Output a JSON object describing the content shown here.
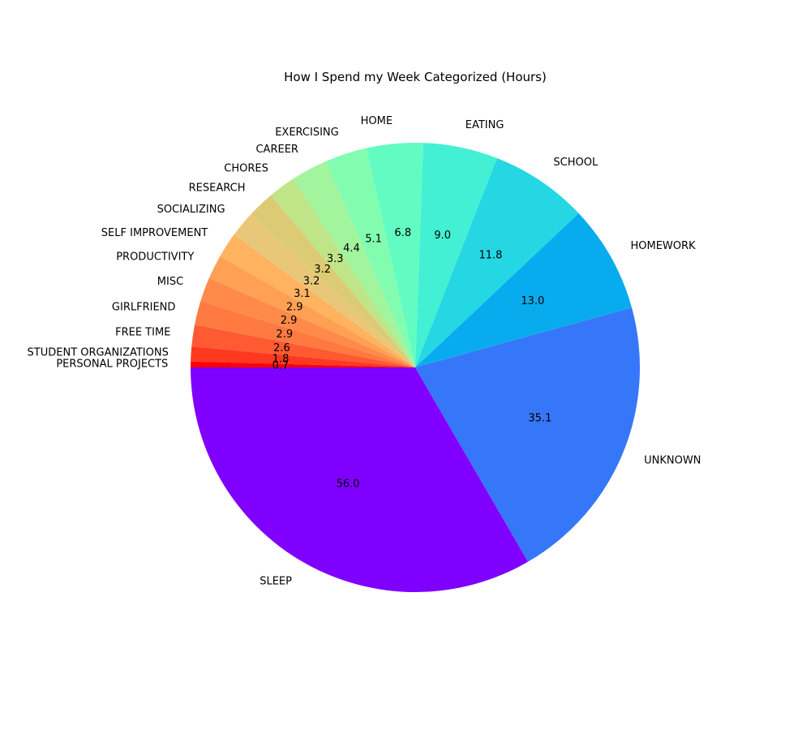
{
  "chart_data": {
    "type": "pie",
    "title": "How I Spend my Week Categorized (Hours)",
    "colormap": "rainbow",
    "value_format": "one-decimal",
    "start_angle_deg": 180,
    "direction": "counterclockwise",
    "slices": [
      {
        "label": "SLEEP",
        "value": 56.0,
        "color": "#8000ff"
      },
      {
        "label": "UNKNOWN",
        "value": 35.1,
        "color": "#3677f9"
      },
      {
        "label": "HOMEWORK",
        "value": 13.0,
        "color": "#08acee"
      },
      {
        "label": "SCHOOL",
        "value": 11.8,
        "color": "#24d7e3"
      },
      {
        "label": "EATING",
        "value": 9.0,
        "color": "#44f0d4"
      },
      {
        "label": "HOME",
        "value": 6.8,
        "color": "#62fcc3"
      },
      {
        "label": "EXERCISING",
        "value": 5.1,
        "color": "#82fdb0"
      },
      {
        "label": "CAREER",
        "value": 4.4,
        "color": "#a2f49d"
      },
      {
        "label": "CHORES",
        "value": 3.3,
        "color": "#c0e488"
      },
      {
        "label": "RESEARCH",
        "value": 3.2,
        "color": "#dccb74"
      },
      {
        "label": "SOCIALIZING",
        "value": 3.2,
        "color": "#e8c878"
      },
      {
        "label": "SELF IMPROVEMENT",
        "value": 3.1,
        "color": "#ffb360"
      },
      {
        "label": "PRODUCTIVITY",
        "value": 2.9,
        "color": "#ffa055"
      },
      {
        "label": "MISC",
        "value": 2.9,
        "color": "#ff8a49"
      },
      {
        "label": "GIRLFRIEND",
        "value": 2.9,
        "color": "#ff7a40"
      },
      {
        "label": "FREE TIME",
        "value": 2.6,
        "color": "#ff5a32"
      },
      {
        "label": "STUDENT ORGANIZATIONS",
        "value": 1.8,
        "color": "#ff3820"
      },
      {
        "label": "PERSONAL PROJECTS",
        "value": 0.7,
        "color": "#ff0000"
      }
    ]
  }
}
